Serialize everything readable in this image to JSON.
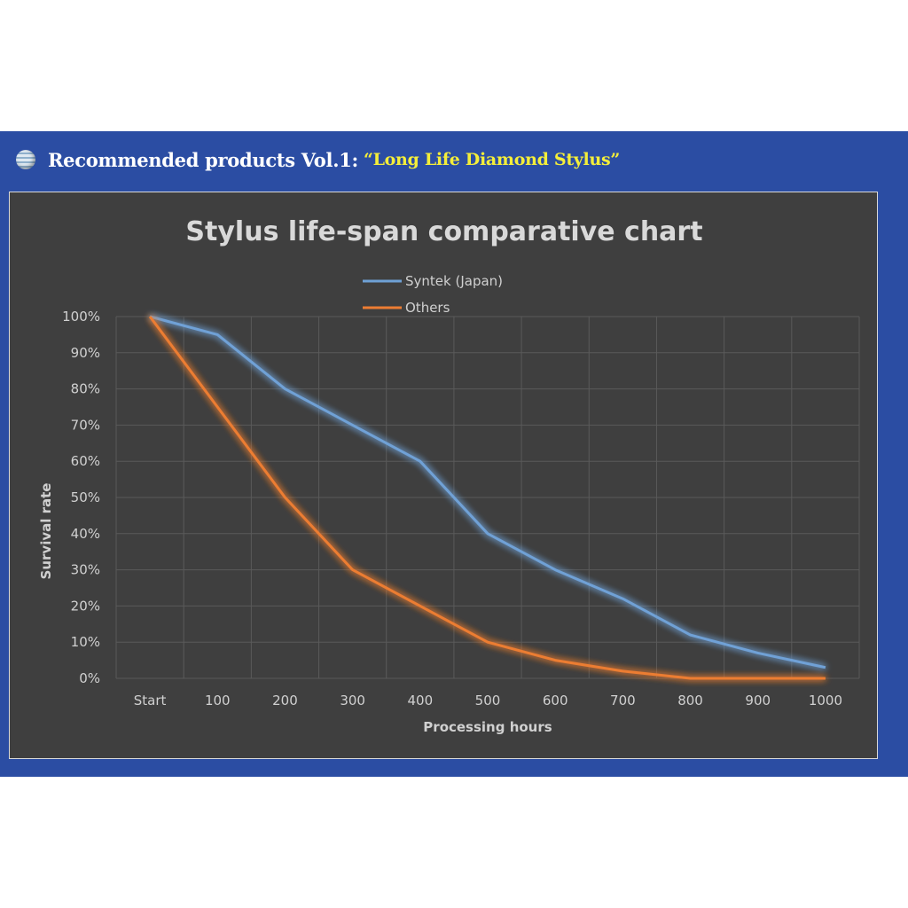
{
  "banner": {
    "icon": "globe-icon",
    "heading": "Recommended products Vol.1:",
    "highlight": "“Long Life Diamond Stylus”",
    "colors": {
      "background": "#2b4da3",
      "heading": "#ffffff",
      "highlight": "#f4ee3a"
    }
  },
  "chart_data": {
    "type": "line",
    "title": "Stylus life-span comparative chart",
    "xlabel": "Processing hours",
    "ylabel": "Survival rate",
    "categories": [
      "Start",
      "100",
      "200",
      "300",
      "400",
      "500",
      "600",
      "700",
      "800",
      "900",
      "1000"
    ],
    "yticks": [
      "0%",
      "10%",
      "20%",
      "30%",
      "40%",
      "50%",
      "60%",
      "70%",
      "80%",
      "90%",
      "100%"
    ],
    "ylim": [
      0,
      100
    ],
    "grid": true,
    "legend_position": "top-center",
    "background": "#3f3f3f",
    "series": [
      {
        "name": "Syntek (Japan)",
        "color": "#6fa1d6",
        "values": [
          100,
          95,
          80,
          70,
          60,
          40,
          30,
          22,
          12,
          7,
          3
        ]
      },
      {
        "name": "Others",
        "color": "#ec7d33",
        "values": [
          100,
          75,
          50,
          30,
          20,
          10,
          5,
          2,
          0,
          0,
          0
        ]
      }
    ]
  }
}
